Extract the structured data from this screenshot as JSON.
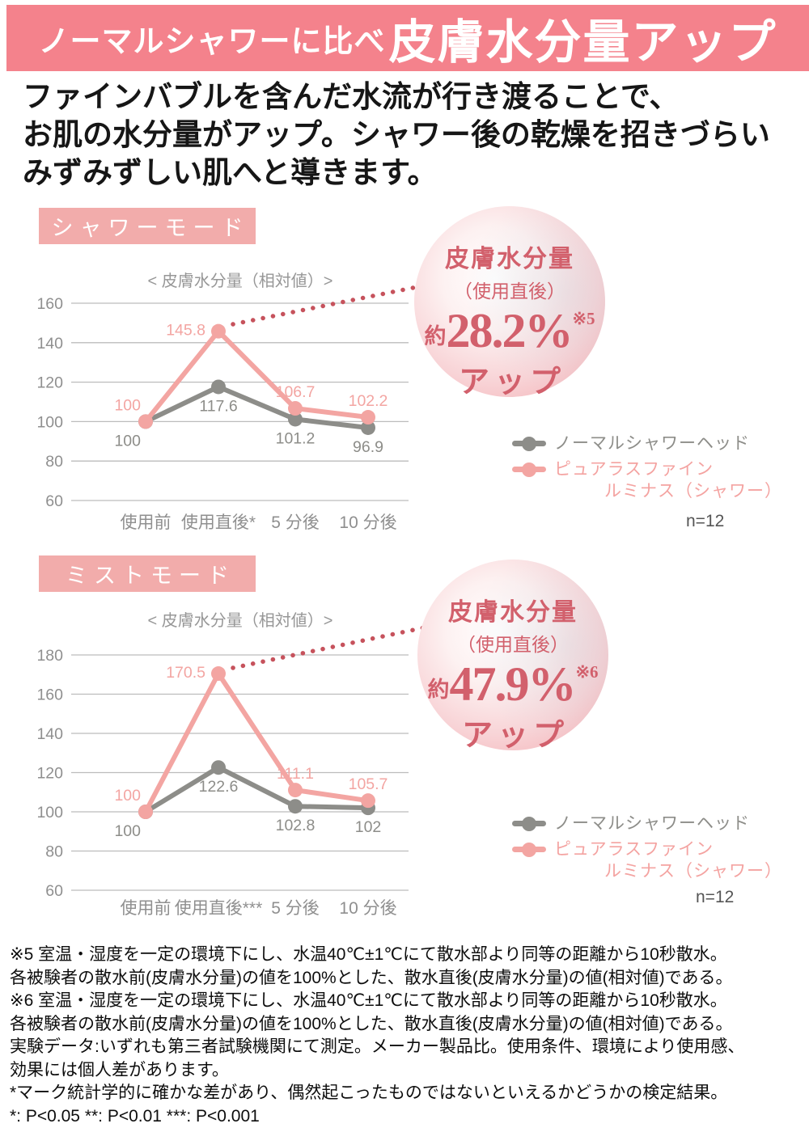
{
  "header": {
    "prefix": "ノーマルシャワーに比べ",
    "title": "皮膚水分量アップ"
  },
  "intro": {
    "line1": "ファインバブルを含んだ水流が行き渡ることで、",
    "line2": "お肌の水分量がアップ。シャワー後の乾燥を招きづらい",
    "line3": "みずみずしい肌へと導きます。"
  },
  "colors": {
    "banner_bg": "#f4828c",
    "mode_box_bg": "#f2acab",
    "normal_line": "#8d8d89",
    "product_line": "#f3a5a2",
    "leader_dots": "#c6525c",
    "badge_text": "#d2606c",
    "grid_line": "#bcbcbc",
    "axis_text": "#8f8f8f"
  },
  "chart_data": [
    {
      "type": "line",
      "mode_label": "シャワーモード",
      "axis_title": "< 皮膚水分量（相対値）>",
      "categories": [
        "使用前",
        "使用直後*",
        "5 分後",
        "10 分後"
      ],
      "yticks": [
        160,
        140,
        120,
        100,
        80,
        60
      ],
      "ylim": [
        60,
        160
      ],
      "series": [
        {
          "name": "ノーマルシャワーヘッド",
          "color": "#8d8d89",
          "values": [
            100,
            117.6,
            101.2,
            96.9
          ],
          "labels": [
            "100",
            "117.6",
            "101.2",
            "96.9"
          ]
        },
        {
          "name": "ピュアラスファイン ルミナス（シャワー）",
          "color": "#f3a5a2",
          "values": [
            100,
            145.8,
            106.7,
            102.2
          ],
          "labels": [
            "100",
            "145.8",
            "106.7",
            "102.2"
          ]
        }
      ],
      "sample_label": "n=12",
      "badge": {
        "line1": "皮膚水分量",
        "line2": "（使用直後）",
        "approx": "約",
        "value": "28.2%",
        "note_ref": "※5",
        "line3": "アップ"
      },
      "legend": [
        {
          "line1": "ノーマルシャワーヘッド"
        },
        {
          "line1": "ピュアラスファイン",
          "line2": "ルミナス（シャワー）"
        }
      ]
    },
    {
      "type": "line",
      "mode_label": "ミストモード",
      "axis_title": "< 皮膚水分量（相対値）>",
      "categories": [
        "使用前",
        "使用直後***",
        "5 分後",
        "10 分後"
      ],
      "yticks": [
        180,
        160,
        140,
        120,
        100,
        80,
        60
      ],
      "ylim": [
        60,
        180
      ],
      "series": [
        {
          "name": "ノーマルシャワーヘッド",
          "color": "#8d8d89",
          "values": [
            100,
            122.6,
            102.8,
            102
          ],
          "labels": [
            "100",
            "122.6",
            "102.8",
            "102"
          ]
        },
        {
          "name": "ピュアラスファイン ルミナス（シャワー）",
          "color": "#f3a5a2",
          "values": [
            100,
            170.5,
            111.1,
            105.7
          ],
          "labels": [
            "100",
            "170.5",
            "111.1",
            "105.7"
          ]
        }
      ],
      "sample_label": "n=12",
      "badge": {
        "line1": "皮膚水分量",
        "line2": "（使用直後）",
        "approx": "約",
        "value": "47.9%",
        "note_ref": "※6",
        "line3": "アップ"
      },
      "legend": [
        {
          "line1": "ノーマルシャワーヘッド"
        },
        {
          "line1": "ピュアラスファイン",
          "line2": "ルミナス（シャワー）"
        }
      ]
    }
  ],
  "footnotes": [
    "※5 室温・湿度を一定の環境下にし、水温40℃±1℃にて散水部より同等の距離から10秒散水。",
    "各被験者の散水前(皮膚水分量)の値を100%とした、散水直後(皮膚水分量)の値(相対値)である。",
    "※6 室温・湿度を一定の環境下にし、水温40℃±1℃にて散水部より同等の距離から10秒散水。",
    "各被験者の散水前(皮膚水分量)の値を100%とした、散水直後(皮膚水分量)の値(相対値)である。",
    "実験データ:いずれも第三者試験機関にて測定。メーカー製品比。使用条件、環境により使用感、",
    "効果には個人差があります。",
    "*マーク統計学的に確かな差があり、偶然起こったものではないといえるかどうかの検定結果。",
    "*: P<0.05 **: P<0.01 ***: P<0.001"
  ]
}
